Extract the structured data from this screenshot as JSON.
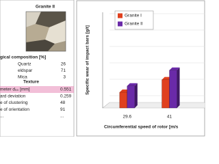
{
  "side_panel": {
    "title": "Granite II",
    "composition_header": "gical composition [%]",
    "composition": [
      [
        "Quartz",
        26
      ],
      [
        "eldspar",
        71
      ],
      [
        "Mica",
        3
      ]
    ],
    "texture_header": "Texture",
    "texture": [
      [
        "meter d₅₀ [mm]",
        0.551
      ],
      [
        "ard deviation",
        0.259
      ],
      [
        "e of clustering",
        48
      ],
      [
        "e of orientation",
        91
      ],
      [
        "...",
        "..."
      ]
    ]
  },
  "chart_data": {
    "type": "bar3d",
    "y_label": "Specific wear of impact bars [g/t]",
    "x_label": "Circumferential speed of rotor [m/s",
    "categories": [
      "29.6",
      "41"
    ],
    "series": [
      {
        "name": "Granite I",
        "color": "#e0401e",
        "values": [
          10,
          18
        ]
      },
      {
        "name": "Granite II",
        "color": "#6a2aa8",
        "values": [
          14,
          24
        ]
      }
    ],
    "ylim": [
      0,
      60
    ]
  }
}
